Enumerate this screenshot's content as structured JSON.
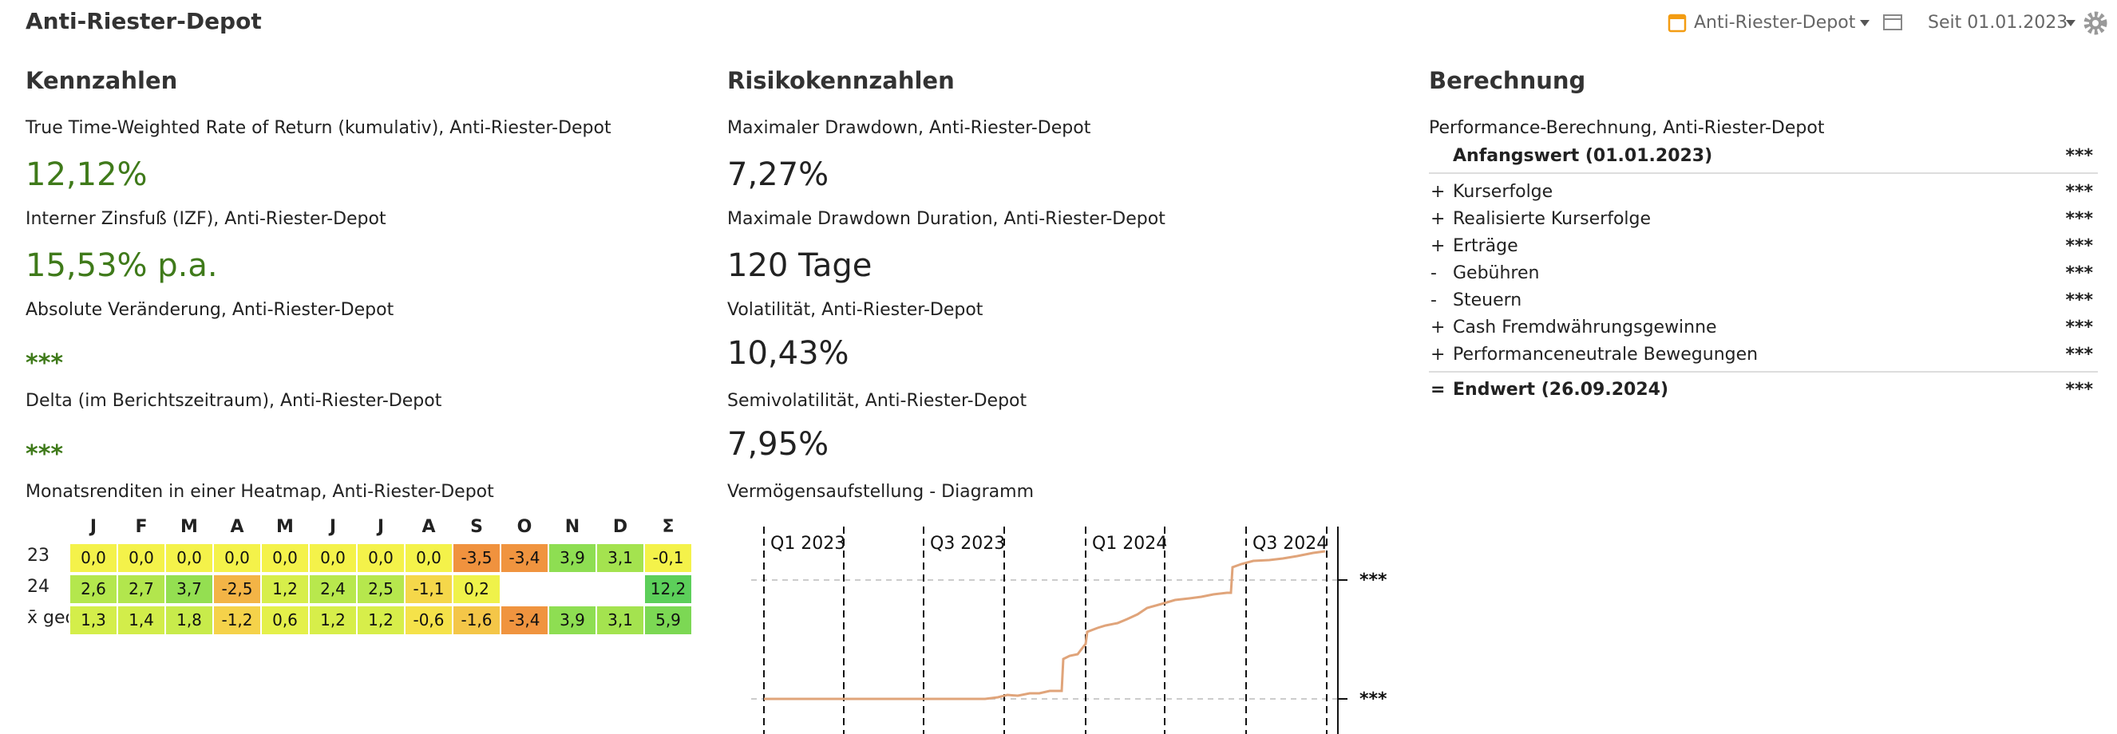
{
  "header": {
    "title": "Anti-Riester-Depot",
    "portfolio": "Anti-Riester-Depot",
    "period": "Seit 01.01.2023"
  },
  "kennzahlen": {
    "title": "Kennzahlen",
    "items": [
      {
        "label": "True Time-Weighted Rate of Return (kumulativ), Anti-Riester-Depot",
        "value": "12,12%"
      },
      {
        "label": "Interner Zinsfuß (IZF), Anti-Riester-Depot",
        "value": "15,53% p.a."
      },
      {
        "label": "Absolute Veränderung, Anti-Riester-Depot",
        "value": "***"
      },
      {
        "label": "Delta (im Berichtszeitraum), Anti-Riester-Depot",
        "value": "***"
      }
    ],
    "heatmap": {
      "title": "Monatsrenditen in einer Heatmap, Anti-Riester-Depot",
      "columns": [
        "J",
        "F",
        "M",
        "A",
        "M",
        "J",
        "J",
        "A",
        "S",
        "O",
        "N",
        "D",
        "Σ"
      ],
      "rows": [
        {
          "label": "23",
          "cells": [
            "0,0",
            "0,0",
            "0,0",
            "0,0",
            "0,0",
            "0,0",
            "0,0",
            "0,0",
            "-3,5",
            "-3,4",
            "3,9",
            "3,1",
            "-0,1"
          ],
          "colors": [
            "#f4f24a",
            "#f4f24a",
            "#f4f24a",
            "#f4f24a",
            "#f4f24a",
            "#f4f24a",
            "#f4f24a",
            "#f4f24a",
            "#f0923e",
            "#f0943f",
            "#8ede52",
            "#a4e34f",
            "#f4f24a"
          ]
        },
        {
          "label": "24",
          "cells": [
            "2,6",
            "2,7",
            "3,7",
            "-2,5",
            "1,2",
            "2,4",
            "2,5",
            "-1,1",
            "0,2",
            null,
            null,
            null,
            "12,2"
          ],
          "colors": [
            "#b4e74d",
            "#b2e64d",
            "#94df51",
            "#f3b446",
            "#d7ee4a",
            "#b8e84d",
            "#b6e74d",
            "#f5d74a",
            "#eff24a",
            null,
            null,
            null,
            "#5ccf5a"
          ]
        },
        {
          "label": "x̄ geo",
          "cells": [
            "1,3",
            "1,4",
            "1,8",
            "-1,2",
            "0,6",
            "1,2",
            "1,2",
            "-0,6",
            "-1,6",
            "-3,4",
            "3,9",
            "3,1",
            "5,9"
          ],
          "colors": [
            "#d4ee4a",
            "#d2ed4a",
            "#c8eb4b",
            "#f5d24a",
            "#e4f04a",
            "#d7ee4a",
            "#d7ee4a",
            "#f5e24a",
            "#f4c648",
            "#f0943f",
            "#8ede52",
            "#a4e34f",
            "#7cd854"
          ]
        }
      ]
    }
  },
  "risiko": {
    "title": "Risikokennzahlen",
    "items": [
      {
        "label": "Maximaler Drawdown, Anti-Riester-Depot",
        "value": "7,27%"
      },
      {
        "label": "Maximale Drawdown Duration, Anti-Riester-Depot",
        "value": "120 Tage"
      },
      {
        "label": "Volatilität, Anti-Riester-Depot",
        "value": "10,43%"
      },
      {
        "label": "Semivolatilität, Anti-Riester-Depot",
        "value": "7,95%"
      }
    ],
    "diagram": {
      "title": "Vermögensaufstellung - Diagramm",
      "quarters": [
        "Q1 2023",
        "Q3 2023",
        "Q1 2024",
        "Q3 2024"
      ],
      "axis_labels": [
        "***",
        "***"
      ]
    }
  },
  "berechnung": {
    "title": "Berechnung",
    "subtitle": "Performance-Berechnung, Anti-Riester-Depot",
    "start": {
      "label": "Anfangswert (01.01.2023)",
      "value": "***"
    },
    "rows": [
      {
        "sign": "+",
        "label": "Kurserfolge",
        "value": "***"
      },
      {
        "sign": "+",
        "label": "Realisierte Kurserfolge",
        "value": "***"
      },
      {
        "sign": "+",
        "label": "Erträge",
        "value": "***"
      },
      {
        "sign": "-",
        "label": "Gebühren",
        "value": "***"
      },
      {
        "sign": "-",
        "label": "Steuern",
        "value": "***"
      },
      {
        "sign": "+",
        "label": "Cash Fremdwährungsgewinne",
        "value": "***"
      },
      {
        "sign": "+",
        "label": "Performanceneutrale Bewegungen",
        "value": "***"
      }
    ],
    "end": {
      "sign": "=",
      "label": "Endwert (26.09.2024)",
      "value": "***"
    }
  }
}
